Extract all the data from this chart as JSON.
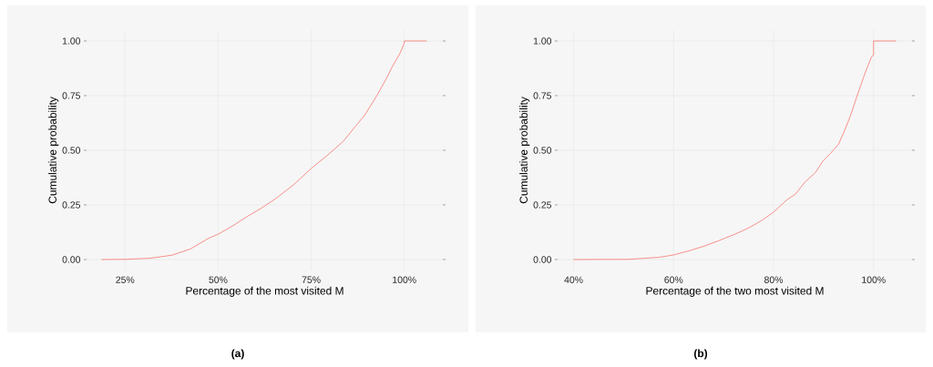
{
  "chart_data": [
    {
      "type": "line",
      "xlabel": "Percentage of the most visited M",
      "ylabel": "Cumulative probability",
      "color": "#f8766d",
      "x": [
        18.7,
        25,
        31.8,
        37.6,
        42.5,
        47.4,
        50,
        54,
        57.7,
        61.4,
        65.5,
        70.4,
        75,
        79.5,
        83.6,
        86.9,
        89.3,
        92.6,
        95.1,
        96.7,
        98.8,
        100,
        100,
        106
      ],
      "values": [
        0,
        0.001,
        0.006,
        0.02,
        0.048,
        0.097,
        0.116,
        0.155,
        0.196,
        0.233,
        0.279,
        0.344,
        0.417,
        0.479,
        0.541,
        0.61,
        0.659,
        0.749,
        0.825,
        0.88,
        0.942,
        0.99,
        1,
        1
      ],
      "xlim": [
        14.65,
        110.35
      ],
      "ylim": [
        -0.05,
        1.05
      ],
      "xticks": [
        {
          "value": 25,
          "label": "25%"
        },
        {
          "value": 50,
          "label": "50%"
        },
        {
          "value": 75,
          "label": "75%"
        },
        {
          "value": 100,
          "label": "100%"
        }
      ],
      "yticks": [
        {
          "value": 0,
          "label": "0.00"
        },
        {
          "value": 0.25,
          "label": "0.25"
        },
        {
          "value": 0.5,
          "label": "0.50"
        },
        {
          "value": 0.75,
          "label": "0.75"
        },
        {
          "value": 1,
          "label": "1.00"
        }
      ],
      "grid": true,
      "annotations": [
        "**(a)**"
      ]
    },
    {
      "type": "line",
      "xlabel": "Percentage of the two most visited M",
      "ylabel": "Cumulative probability",
      "color": "#f8766d",
      "x": [
        40,
        51,
        57,
        60,
        63.1,
        66.2,
        69.2,
        72.3,
        75.3,
        77.7,
        80,
        82.6,
        84.4,
        86.3,
        88.4,
        89.9,
        91.4,
        93,
        94.2,
        95.4,
        96.9,
        98.4,
        99.6,
        100,
        100,
        104.5
      ],
      "values": [
        0,
        0.001,
        0.01,
        0.021,
        0.04,
        0.062,
        0.088,
        0.116,
        0.148,
        0.18,
        0.217,
        0.272,
        0.3,
        0.355,
        0.399,
        0.452,
        0.486,
        0.528,
        0.59,
        0.659,
        0.762,
        0.859,
        0.928,
        0.935,
        1,
        1
      ],
      "xlim": [
        36.8,
        107.7
      ],
      "ylim": [
        -0.05,
        1.05
      ],
      "xticks": [
        {
          "value": 40,
          "label": "40%"
        },
        {
          "value": 60,
          "label": "60%"
        },
        {
          "value": 80,
          "label": "80%"
        },
        {
          "value": 100,
          "label": "100%"
        }
      ],
      "yticks": [
        {
          "value": 0,
          "label": "0.00"
        },
        {
          "value": 0.25,
          "label": "0.25"
        },
        {
          "value": 0.5,
          "label": "0.50"
        },
        {
          "value": 0.75,
          "label": "0.75"
        },
        {
          "value": 1,
          "label": "1.00"
        }
      ],
      "grid": true,
      "annotations": [
        "**(b)**"
      ]
    }
  ]
}
